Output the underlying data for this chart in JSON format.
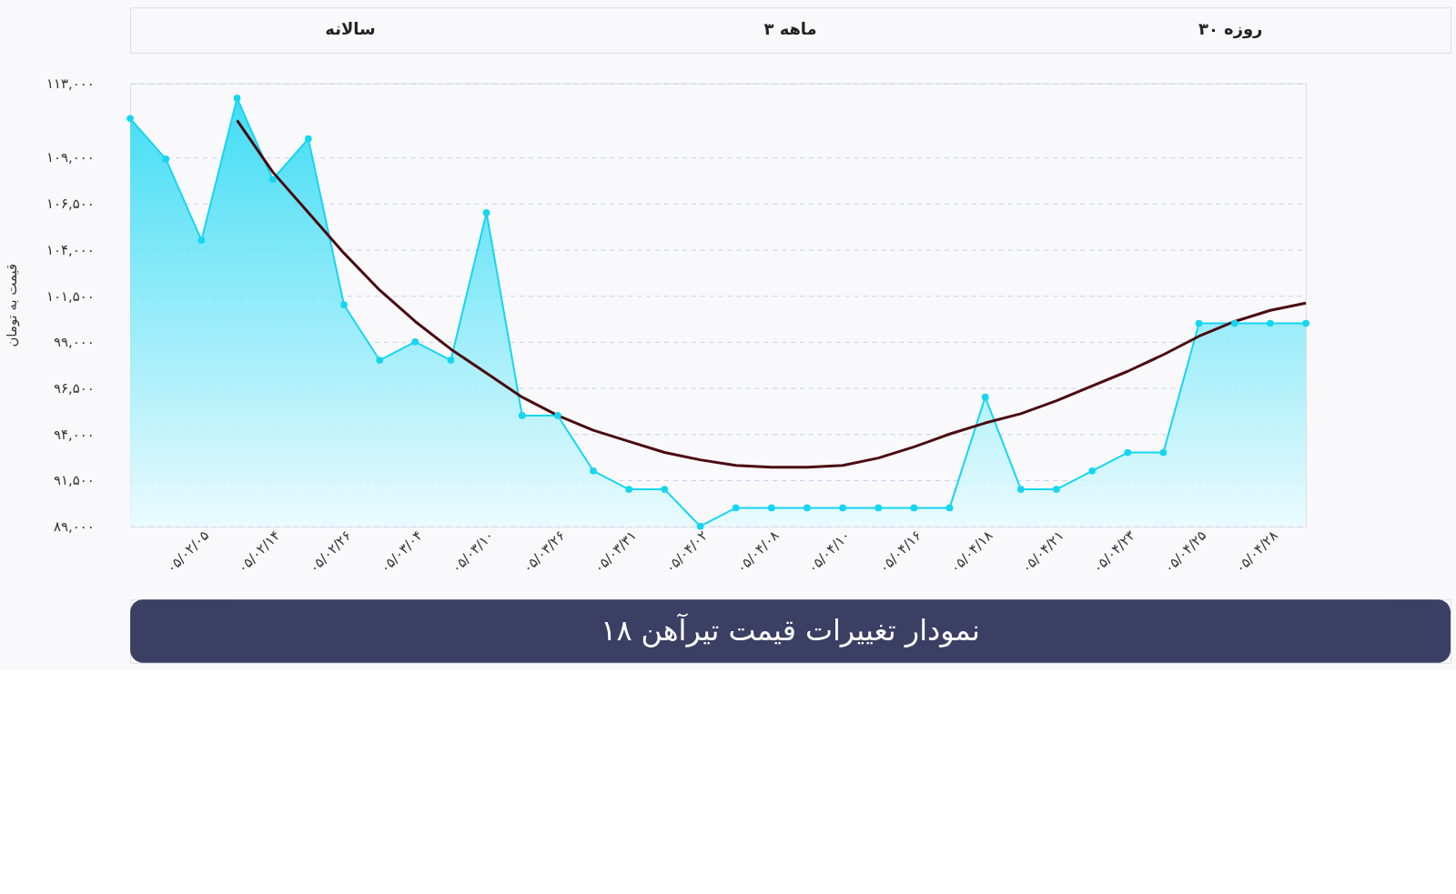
{
  "chart_data": {
    "type": "area",
    "title": "نمودار تغییرات قیمت تیرآهن ۱۸",
    "ylabel": "قیمت به تومان",
    "annotations": [
      "سالانه",
      "۳ ماهه",
      "۳۰ روزه"
    ],
    "categories": [
      null,
      null,
      "۰۵/۰۲/۰۵",
      null,
      "۰۵/۰۲/۱۴",
      null,
      "۰۵/۰۲/۲۶",
      null,
      "۰۵/۰۳/۰۴",
      null,
      "۰۵/۰۳/۱۰",
      null,
      "۰۵/۰۳/۲۶",
      null,
      "۰۵/۰۳/۳۱",
      null,
      "۰۵/۰۴/۰۲",
      null,
      "۰۵/۰۴/۰۸",
      null,
      "۰۵/۰۴/۱۰",
      null,
      "۰۵/۰۴/۱۶",
      null,
      "۰۵/۰۴/۱۸",
      null,
      "۰۵/۰۴/۲۱",
      null,
      "۰۵/۰۴/۲۳",
      null,
      "۰۵/۰۴/۲۵",
      null,
      "۰۵/۰۴/۲۸",
      null
    ],
    "series": [
      {
        "color": "#14d6f2",
        "marker": "circle",
        "values": [
          111100,
          108900,
          104500,
          112200,
          107800,
          110000,
          101000,
          98000,
          99000,
          98000,
          106000,
          95000,
          95000,
          92000,
          91000,
          91000,
          89000,
          90000,
          90000,
          90000,
          90000,
          90000,
          90000,
          90000,
          96000,
          91000,
          91000,
          92000,
          93000,
          93000,
          100000,
          100000,
          100000,
          100000
        ]
      },
      {
        "type": "line",
        "color": "#4a0a0f",
        "marker": "none",
        "values": [
          null,
          null,
          null,
          111000,
          108200,
          106000,
          103800,
          101800,
          100100,
          98600,
          97300,
          96000,
          95000,
          94200,
          93600,
          93000,
          92600,
          92300,
          92200,
          92200,
          92300,
          92700,
          93300,
          94000,
          94600,
          95100,
          95800,
          96600,
          97400,
          98300,
          99300,
          100100,
          100700,
          101100
        ]
      }
    ],
    "ylim": [
      89000,
      113000
    ],
    "yticks": [
      {
        "value": 89000,
        "label": "۸۹,۰۰۰"
      },
      {
        "value": 91500,
        "label": "۹۱,۵۰۰"
      },
      {
        "value": 94000,
        "label": "۹۴,۰۰۰"
      },
      {
        "value": 96500,
        "label": "۹۶,۵۰۰"
      },
      {
        "value": 99000,
        "label": "۹۹,۰۰۰"
      },
      {
        "value": 101500,
        "label": "۱۰۱,۵۰۰"
      },
      {
        "value": 104000,
        "label": "۱۰۴,۰۰۰"
      },
      {
        "value": 106500,
        "label": "۱۰۶,۵۰۰"
      },
      {
        "value": 109000,
        "label": "۱۰۹,۰۰۰"
      },
      {
        "value": 113000,
        "label": "۱۱۳,۰۰۰"
      }
    ],
    "grid": "y"
  }
}
